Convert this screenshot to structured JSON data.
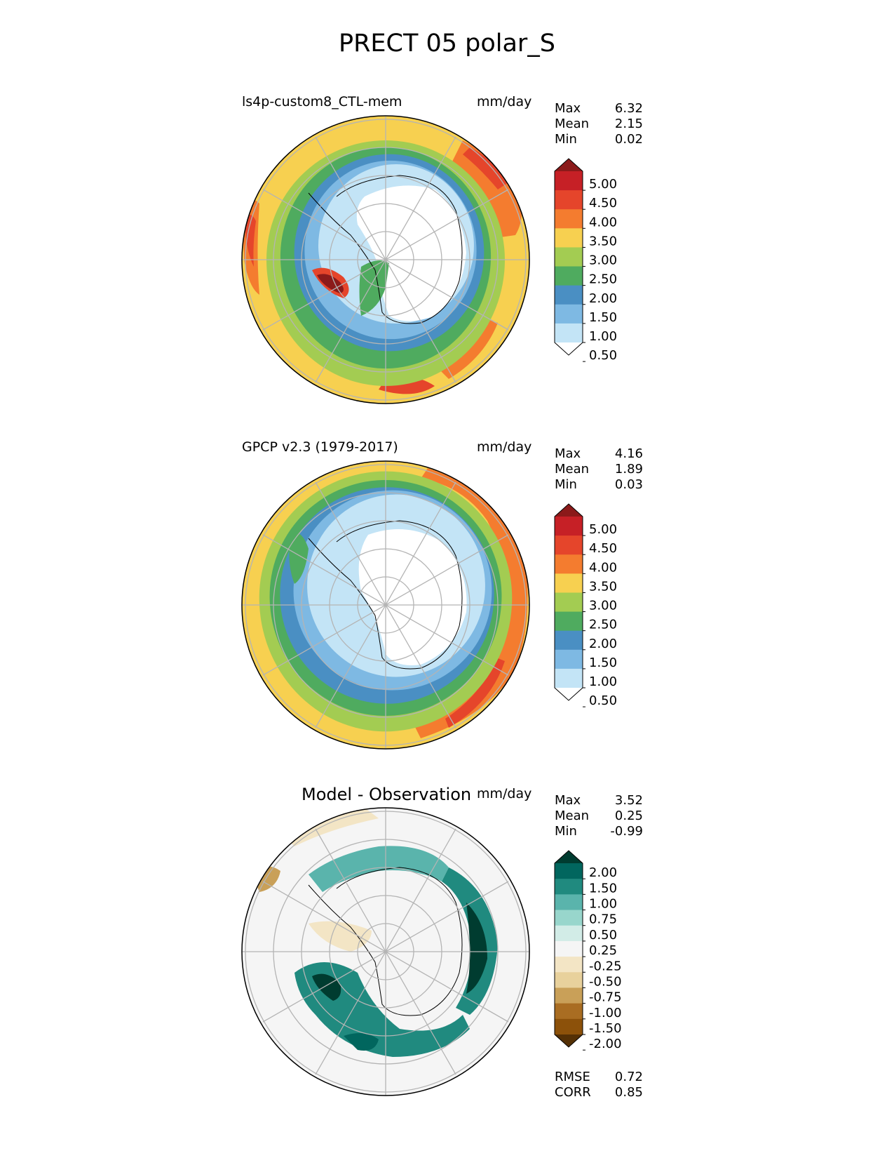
{
  "title": "PRECT 05 polar_S",
  "panels": [
    {
      "id": "test",
      "title": "ls4p-custom8_CTL-mem",
      "units": "mm/day",
      "stats": {
        "Max": "6.32",
        "Mean": "2.15",
        "Min": "0.02"
      },
      "colorbar": {
        "levels": [
          "5.00",
          "4.50",
          "4.00",
          "3.50",
          "3.00",
          "2.50",
          "2.00",
          "1.50",
          "1.00",
          "0.50"
        ],
        "colors": [
          "#8b1a1a",
          "#c62026",
          "#e5452b",
          "#f47c2f",
          "#f7d050",
          "#a3cc52",
          "#4fab5f",
          "#4a8fc3",
          "#7eb9e3",
          "#c3e4f6",
          "#ffffff"
        ]
      }
    },
    {
      "id": "reference",
      "title": "GPCP v2.3 (1979-2017)",
      "units": "mm/day",
      "stats": {
        "Max": "4.16",
        "Mean": "1.89",
        "Min": "0.03"
      },
      "colorbar": {
        "levels": [
          "5.00",
          "4.50",
          "4.00",
          "3.50",
          "3.00",
          "2.50",
          "2.00",
          "1.50",
          "1.00",
          "0.50"
        ],
        "colors": [
          "#8b1a1a",
          "#c62026",
          "#e5452b",
          "#f47c2f",
          "#f7d050",
          "#a3cc52",
          "#4fab5f",
          "#4a8fc3",
          "#7eb9e3",
          "#c3e4f6",
          "#ffffff"
        ]
      }
    },
    {
      "id": "diff",
      "title": "Model - Observation",
      "units": "mm/day",
      "stats": {
        "Max": "3.52",
        "Mean": "0.25",
        "Min": "-0.99"
      },
      "colorbar": {
        "levels": [
          "2.00",
          "1.50",
          "1.00",
          "0.75",
          "0.50",
          "0.25",
          "-0.25",
          "-0.50",
          "-0.75",
          "-1.00",
          "-1.50",
          "-2.00"
        ],
        "colors": [
          "#003c30",
          "#01665e",
          "#208a7f",
          "#5ab4ac",
          "#98d6cc",
          "#d2ece7",
          "#f5f5f5",
          "#f3e5c5",
          "#e8d19c",
          "#c9a058",
          "#a96d22",
          "#8c510a",
          "#543005"
        ]
      },
      "metrics": {
        "RMSE": "0.72",
        "CORR": "0.85"
      }
    }
  ]
}
